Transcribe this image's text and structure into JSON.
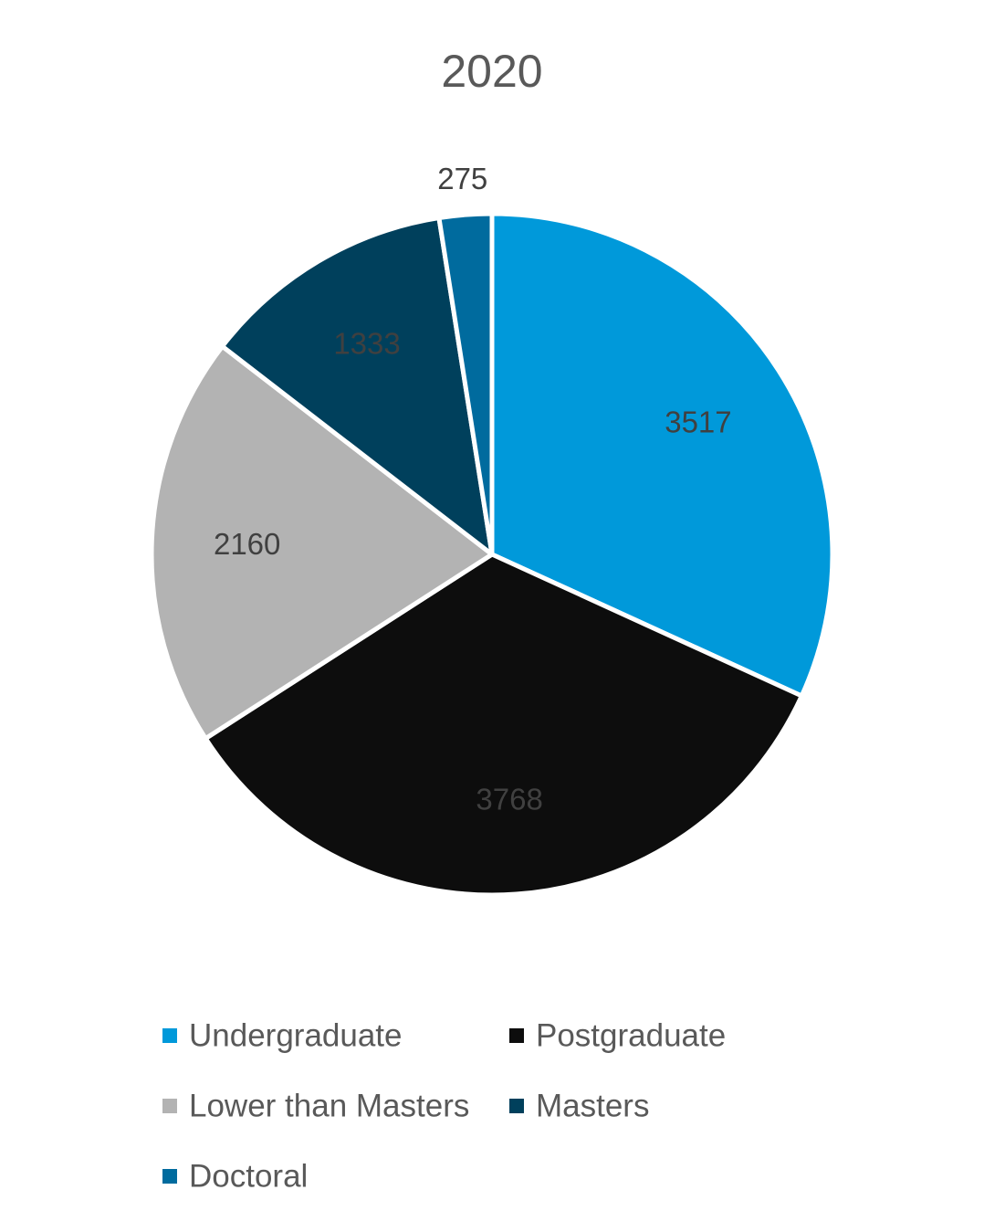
{
  "chart_data": {
    "type": "pie",
    "title": "2020",
    "categories": [
      "Undergraduate",
      "Postgraduate",
      "Lower than Masters",
      "Masters",
      "Doctoral"
    ],
    "values": [
      3517,
      3768,
      2160,
      1333,
      275
    ],
    "colors": [
      "#0099DA",
      "#0D0D0D",
      "#B3B3B3",
      "#00405C",
      "#006B9E"
    ],
    "label_colors": [
      "#404040",
      "#404040",
      "#404040",
      "#404040",
      "#404040"
    ],
    "start_angle_deg": 0,
    "direction": "clockwise",
    "legend_position": "bottom"
  }
}
